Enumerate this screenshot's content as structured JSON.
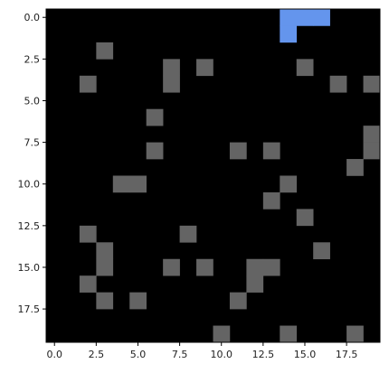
{
  "chart_data": {
    "type": "heatmap",
    "grid_size": [
      20,
      20
    ],
    "x_ticks": [
      0.0,
      2.5,
      5.0,
      7.5,
      10.0,
      12.5,
      15.0,
      17.5
    ],
    "x_tick_labels": [
      "0.0",
      "2.5",
      "5.0",
      "7.5",
      "10.0",
      "12.5",
      "15.0",
      "17.5"
    ],
    "y_ticks": [
      0.0,
      2.5,
      5.0,
      7.5,
      10.0,
      12.5,
      15.0,
      17.5
    ],
    "y_tick_labels": [
      "0.0",
      "2.5",
      "5.0",
      "7.5",
      "10.0",
      "12.5",
      "15.0",
      "17.5"
    ],
    "xlim": [
      -0.5,
      19.5
    ],
    "ylim": [
      19.5,
      -0.5
    ],
    "cell_colors": {
      "empty": "#000000",
      "obstacle": "#646464",
      "player": "#6495ed"
    },
    "obstacles": [
      [
        3,
        2
      ],
      [
        7,
        3
      ],
      [
        9,
        3
      ],
      [
        15,
        3
      ],
      [
        2,
        4
      ],
      [
        7,
        4
      ],
      [
        17,
        4
      ],
      [
        19,
        4
      ],
      [
        6,
        6
      ],
      [
        19,
        7
      ],
      [
        6,
        8
      ],
      [
        11,
        8
      ],
      [
        13,
        8
      ],
      [
        19,
        8
      ],
      [
        18,
        9
      ],
      [
        4,
        10
      ],
      [
        5,
        10
      ],
      [
        14,
        10
      ],
      [
        13,
        11
      ],
      [
        15,
        12
      ],
      [
        2,
        13
      ],
      [
        8,
        13
      ],
      [
        3,
        14
      ],
      [
        16,
        14
      ],
      [
        3,
        15
      ],
      [
        7,
        15
      ],
      [
        9,
        15
      ],
      [
        12,
        15
      ],
      [
        13,
        15
      ],
      [
        2,
        16
      ],
      [
        12,
        16
      ],
      [
        3,
        17
      ],
      [
        5,
        17
      ],
      [
        11,
        17
      ],
      [
        10,
        19
      ],
      [
        14,
        19
      ],
      [
        18,
        19
      ]
    ],
    "player_cells": [
      [
        14,
        0
      ],
      [
        15,
        0
      ],
      [
        16,
        0
      ],
      [
        14,
        1
      ]
    ]
  }
}
